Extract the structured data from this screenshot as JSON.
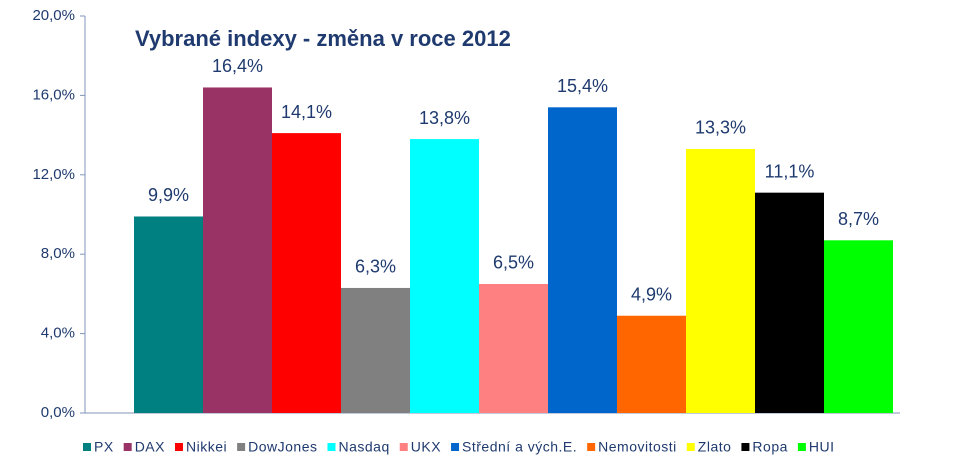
{
  "chart_data": {
    "type": "bar",
    "title": "Vybrané indexy - změna v roce 2012",
    "categories": [
      null
    ],
    "series": [
      {
        "name": "PX",
        "color": "#008080",
        "values": [
          9.9
        ],
        "value_labels": [
          "9,9%"
        ]
      },
      {
        "name": "DAX",
        "color": "#993366",
        "values": [
          16.4
        ],
        "value_labels": [
          "16,4%"
        ]
      },
      {
        "name": "Nikkei",
        "color": "#ff0000",
        "values": [
          14.1
        ],
        "value_labels": [
          "14,1%"
        ]
      },
      {
        "name": "DowJones",
        "color": "#808080",
        "values": [
          6.3
        ],
        "value_labels": [
          "6,3%"
        ]
      },
      {
        "name": "Nasdaq",
        "color": "#00ffff",
        "values": [
          13.8
        ],
        "value_labels": [
          "13,8%"
        ]
      },
      {
        "name": "UKX",
        "color": "#ff8080",
        "values": [
          6.5
        ],
        "value_labels": [
          "6,5%"
        ]
      },
      {
        "name": "Střední a vých.E.",
        "color": "#0066cc",
        "values": [
          15.4
        ],
        "value_labels": [
          "15,4%"
        ]
      },
      {
        "name": "Nemovitosti",
        "color": "#ff6600",
        "values": [
          4.9
        ],
        "value_labels": [
          "4,9%"
        ]
      },
      {
        "name": "Zlato",
        "color": "#ffff00",
        "values": [
          13.3
        ],
        "value_labels": [
          "13,3%"
        ]
      },
      {
        "name": "Ropa",
        "color": "#000000",
        "values": [
          11.1
        ],
        "value_labels": [
          "11,1%"
        ]
      },
      {
        "name": "HUI",
        "color": "#00ff00",
        "values": [
          8.7
        ],
        "value_labels": [
          "8,7%"
        ]
      }
    ],
    "ylim": [
      0,
      20
    ],
    "yticks": [
      {
        "value": 0,
        "label": "0,0%"
      },
      {
        "value": 4,
        "label": "4,0%"
      },
      {
        "value": 8,
        "label": "8,0%"
      },
      {
        "value": 12,
        "label": "12,0%"
      },
      {
        "value": 16,
        "label": "16,0%"
      },
      {
        "value": 20,
        "label": "20,0%"
      }
    ],
    "grid": false,
    "legend": "bottom"
  }
}
